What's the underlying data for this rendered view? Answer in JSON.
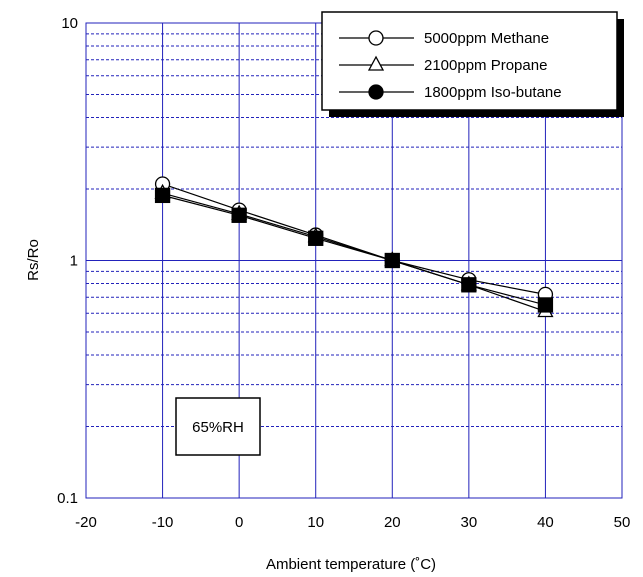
{
  "chart_data": {
    "type": "line",
    "xlabel": "Ambient temperature (˚C)",
    "ylabel": "Rs/Ro",
    "xlim": [
      -20,
      50
    ],
    "ylim": [
      0.1,
      10
    ],
    "y_scale": "log",
    "x_ticks": [
      -20,
      -10,
      0,
      10,
      20,
      30,
      40,
      50
    ],
    "x_tick_labels": [
      "-20",
      "-10",
      "0",
      "10",
      "20",
      "30",
      "40",
      "50"
    ],
    "y_ticks": [
      0.1,
      1,
      10
    ],
    "y_tick_labels": [
      "0.1",
      "1",
      "10"
    ],
    "grid": true,
    "grid_color": "#2222bb",
    "legend_position": "top-right",
    "annotation": "65%RH",
    "x": [
      -10,
      0,
      10,
      20,
      30,
      40
    ],
    "series": [
      {
        "name": "5000ppm Methane",
        "marker": "circle-open",
        "values": [
          2.1,
          1.63,
          1.28,
          1.0,
          0.83,
          0.72
        ]
      },
      {
        "name": "2100ppm Propane",
        "marker": "triangle-open",
        "values": [
          1.92,
          1.57,
          1.26,
          1.0,
          0.79,
          0.61
        ]
      },
      {
        "name": "1800ppm Iso-butane",
        "marker": "circle-filled",
        "values": [
          1.88,
          1.55,
          1.24,
          1.0,
          0.79,
          0.65
        ]
      }
    ]
  }
}
